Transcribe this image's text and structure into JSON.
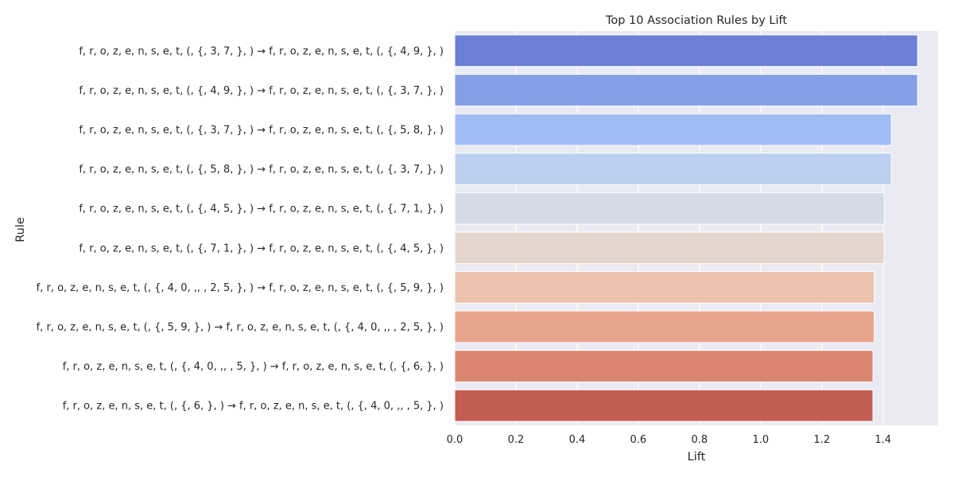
{
  "chart_data": {
    "type": "bar",
    "orientation": "horizontal",
    "title": "Top 10 Association Rules by Lift",
    "xlabel": "Lift",
    "ylabel": "Rule",
    "xlim": [
      0,
      1.58
    ],
    "xticks": [
      0.0,
      0.2,
      0.4,
      0.6,
      0.8,
      1.0,
      1.2,
      1.4
    ],
    "xtick_labels": [
      "0.0",
      "0.2",
      "0.4",
      "0.6",
      "0.8",
      "1.0",
      "1.2",
      "1.4"
    ],
    "grid": true,
    "categories": [
      "f, r, o, z, e, n, s, e, t, (, {, 3, 7, }, ) → f, r, o, z, e, n, s, e, t, (, {, 4, 9, }, )",
      "f, r, o, z, e, n, s, e, t, (, {, 4, 9, }, ) → f, r, o, z, e, n, s, e, t, (, {, 3, 7, }, )",
      "f, r, o, z, e, n, s, e, t, (, {, 3, 7, }, ) → f, r, o, z, e, n, s, e, t, (, {, 5, 8, }, )",
      "f, r, o, z, e, n, s, e, t, (, {, 5, 8, }, ) → f, r, o, z, e, n, s, e, t, (, {, 3, 7, }, )",
      "f, r, o, z, e, n, s, e, t, (, {, 4, 5, }, ) → f, r, o, z, e, n, s, e, t, (, {, 7, 1, }, )",
      "f, r, o, z, e, n, s, e, t, (, {, 7, 1, }, ) → f, r, o, z, e, n, s, e, t, (, {, 4, 5, }, )",
      "f, r, o, z, e, n, s, e, t, (, {, 4, 0, ,,  , 2, 5, }, ) → f, r, o, z, e, n, s, e, t, (, {, 5, 9, }, )",
      "f, r, o, z, e, n, s, e, t, (, {, 5, 9, }, ) → f, r, o, z, e, n, s, e, t, (, {, 4, 0, ,,  , 2, 5, }, )",
      "f, r, o, z, e, n, s, e, t, (, {, 4, 0, ,,  , 5, }, ) → f, r, o, z, e, n, s, e, t, (, {, 6, }, )",
      "f, r, o, z, e, n, s, e, t, (, {, 6, }, ) → f, r, o, z, e, n, s, e, t, (, {, 4, 0, ,,  , 5, }, )"
    ],
    "values": [
      1.513,
      1.513,
      1.427,
      1.427,
      1.404,
      1.404,
      1.371,
      1.371,
      1.367,
      1.367
    ],
    "colors": [
      "#6a80d4",
      "#849fe5",
      "#a0bcf4",
      "#bccff0",
      "#d4dbe6",
      "#e4d6cf",
      "#ecc2ad",
      "#e7a58b",
      "#da8570",
      "#c45e52"
    ],
    "plot_background": "#eaeaf2",
    "grid_color": "#ffffff"
  }
}
